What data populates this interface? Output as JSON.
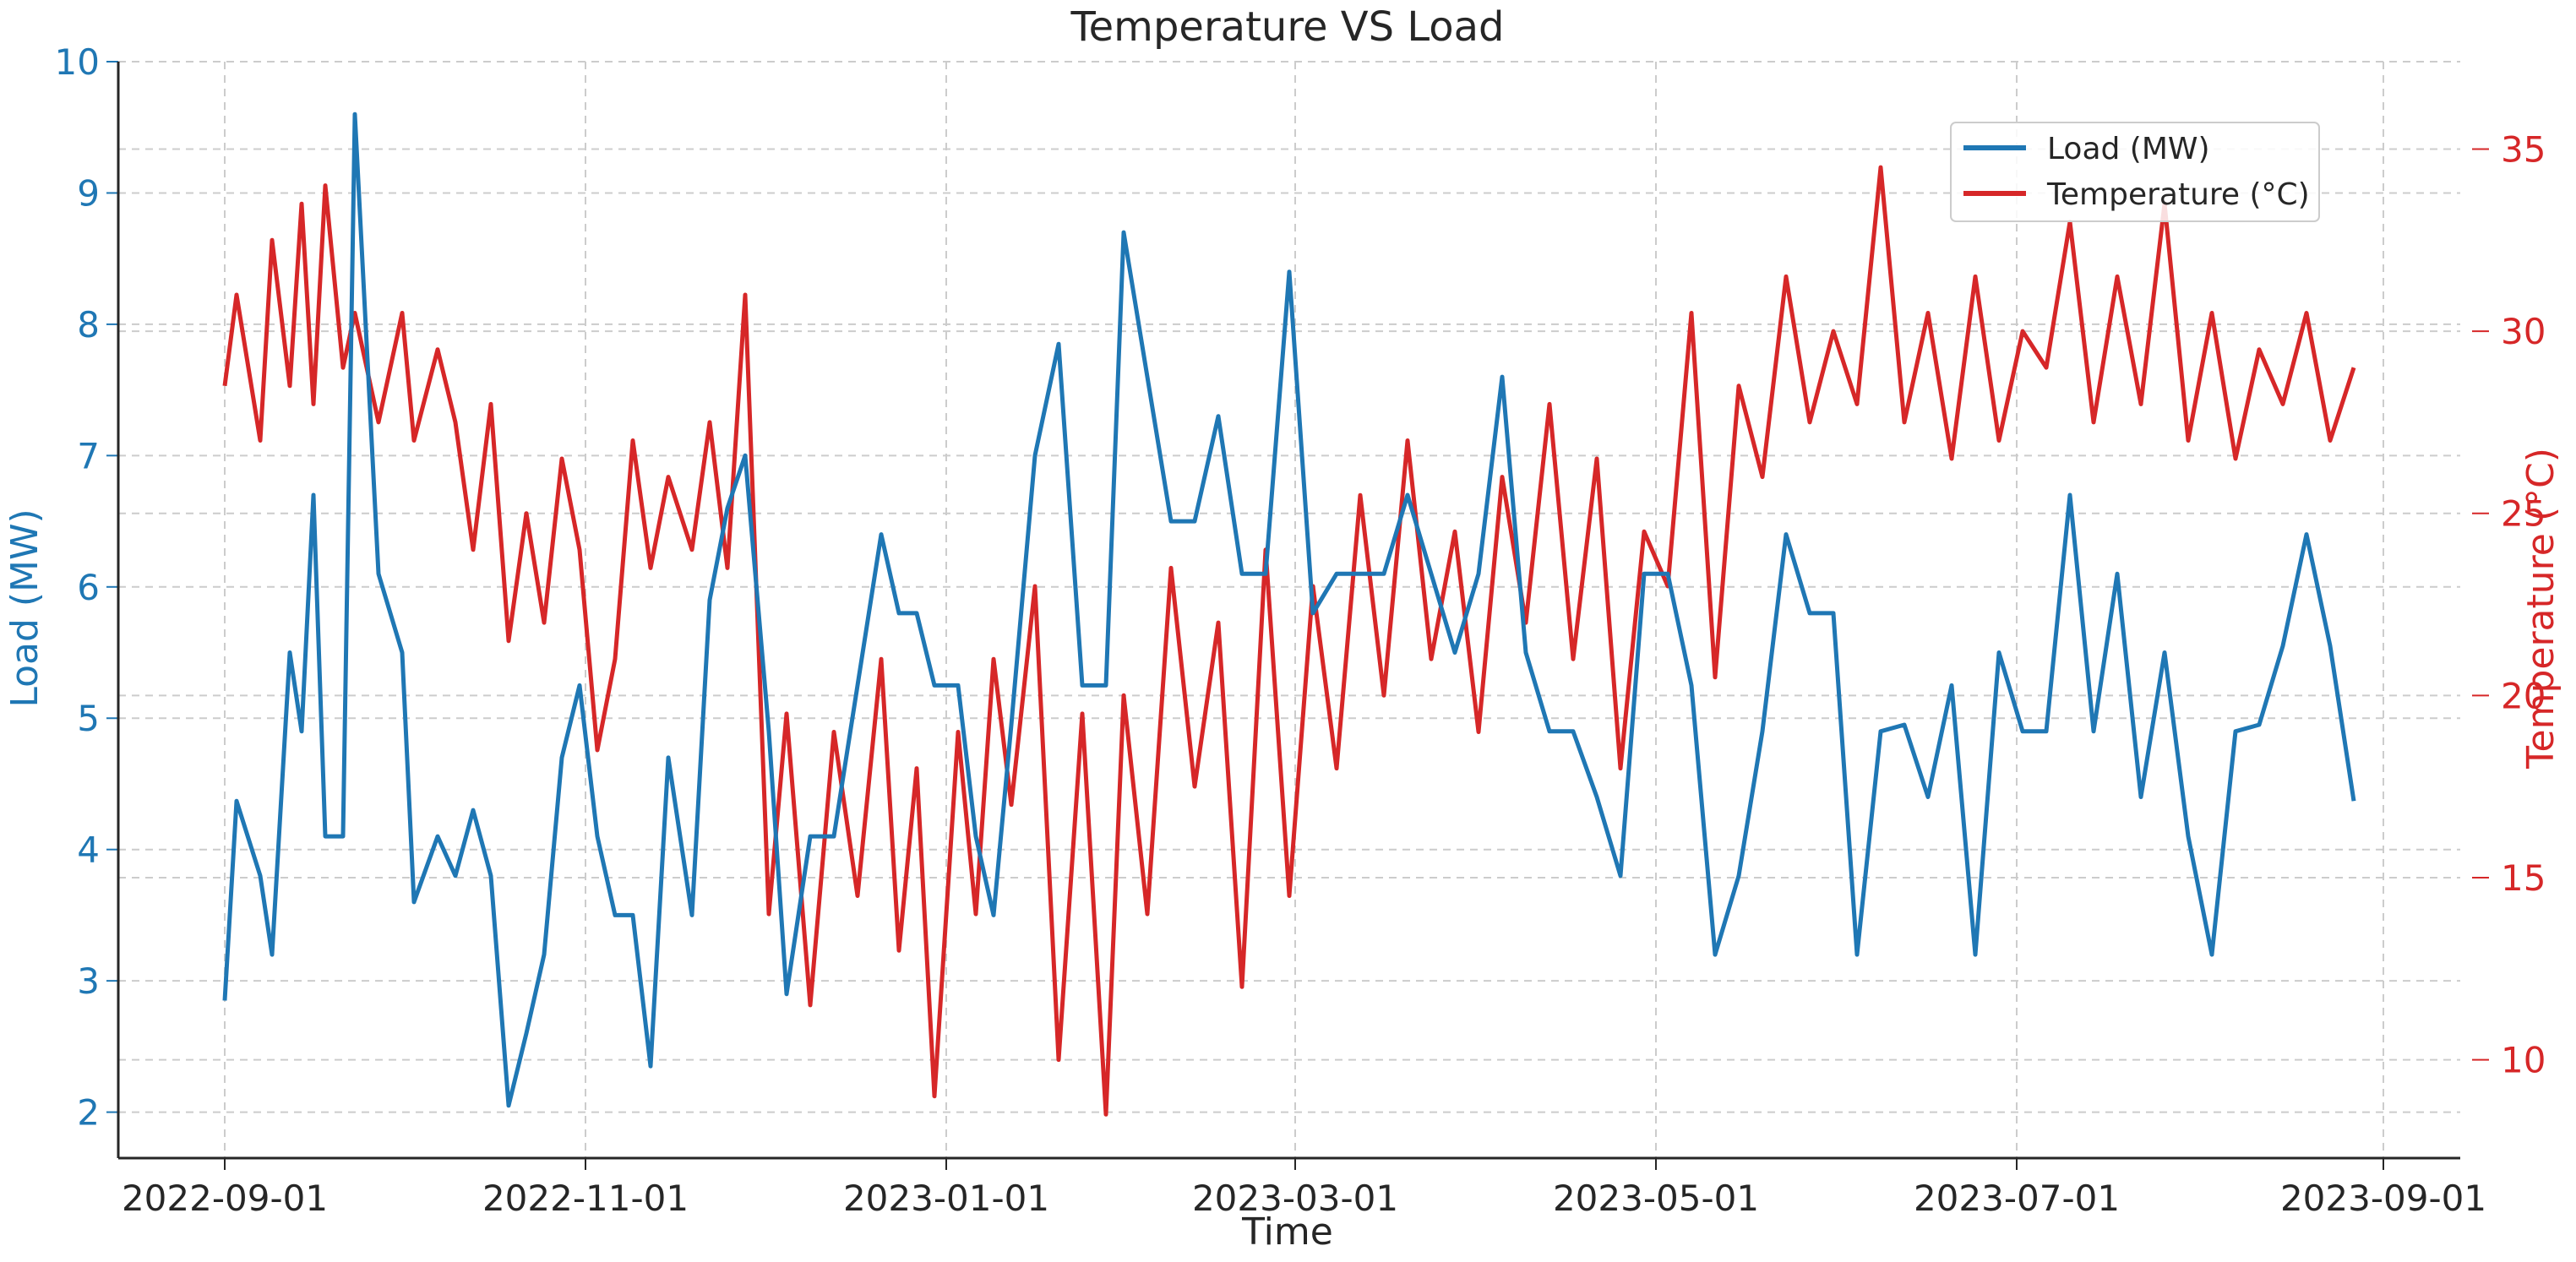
{
  "chart_data": {
    "type": "line",
    "title": "Temperature VS Load",
    "xlabel": "Time",
    "x_ticks": [
      "2022-09-01",
      "2022-11-01",
      "2023-01-01",
      "2023-03-01",
      "2023-05-01",
      "2023-07-01",
      "2023-09-01"
    ],
    "x_range": [
      "2022-08-14",
      "2023-09-14"
    ],
    "grid": true,
    "legend_position": "top-right",
    "y_left": {
      "label": "Load (MW)",
      "color": "#1f77b4",
      "ylim": [
        1.65,
        10.0
      ],
      "ticks": [
        "2",
        "3",
        "4",
        "5",
        "6",
        "7",
        "8",
        "9",
        "10"
      ]
    },
    "y_right": {
      "label": "Temperature (°C)",
      "color": "#d62728",
      "ylim": [
        7.3,
        37.4
      ],
      "ticks": [
        "10",
        "15",
        "20",
        "25",
        "30",
        "35"
      ]
    },
    "series": [
      {
        "name": "Load (MW)",
        "axis": "left",
        "color": "#1f77b4",
        "dates": [
          "2022-09-01",
          "2022-09-03",
          "2022-09-07",
          "2022-09-09",
          "2022-09-12",
          "2022-09-14",
          "2022-09-16",
          "2022-09-18",
          "2022-09-21",
          "2022-09-23",
          "2022-09-27",
          "2022-10-01",
          "2022-10-03",
          "2022-10-07",
          "2022-10-10",
          "2022-10-13",
          "2022-10-16",
          "2022-10-19",
          "2022-10-22",
          "2022-10-25",
          "2022-10-28",
          "2022-10-31",
          "2022-11-03",
          "2022-11-06",
          "2022-11-09",
          "2022-11-12",
          "2022-11-15",
          "2022-11-19",
          "2022-11-22",
          "2022-11-25",
          "2022-11-28",
          "2022-12-02",
          "2022-12-05",
          "2022-12-09",
          "2022-12-13",
          "2022-12-17",
          "2022-12-21",
          "2022-12-24",
          "2022-12-27",
          "2022-12-30",
          "2023-01-03",
          "2023-01-06",
          "2023-01-09",
          "2023-01-12",
          "2023-01-16",
          "2023-01-20",
          "2023-01-24",
          "2023-01-28",
          "2023-01-31",
          "2023-02-04",
          "2023-02-08",
          "2023-02-12",
          "2023-02-16",
          "2023-02-20",
          "2023-02-24",
          "2023-02-28",
          "2023-03-04",
          "2023-03-08",
          "2023-03-12",
          "2023-03-16",
          "2023-03-20",
          "2023-03-24",
          "2023-03-28",
          "2023-04-01",
          "2023-04-05",
          "2023-04-09",
          "2023-04-13",
          "2023-04-17",
          "2023-04-21",
          "2023-04-25",
          "2023-04-29",
          "2023-05-03",
          "2023-05-07",
          "2023-05-11",
          "2023-05-15",
          "2023-05-19",
          "2023-05-23",
          "2023-05-27",
          "2023-05-31",
          "2023-06-04",
          "2023-06-08",
          "2023-06-12",
          "2023-06-16",
          "2023-06-20",
          "2023-06-24",
          "2023-06-28",
          "2023-07-02",
          "2023-07-06",
          "2023-07-10",
          "2023-07-14",
          "2023-07-18",
          "2023-07-22",
          "2023-07-26",
          "2023-07-30",
          "2023-08-03",
          "2023-08-07",
          "2023-08-11",
          "2023-08-15",
          "2023-08-19",
          "2023-08-23",
          "2023-08-27"
        ],
        "values": [
          2.85,
          4.37,
          3.8,
          3.2,
          5.5,
          4.9,
          6.7,
          4.1,
          4.1,
          9.6,
          6.1,
          5.5,
          3.6,
          4.1,
          3.8,
          4.3,
          3.8,
          2.05,
          2.6,
          3.2,
          4.7,
          5.25,
          4.1,
          3.5,
          3.5,
          2.35,
          4.7,
          3.5,
          5.9,
          6.6,
          7.0,
          4.9,
          2.9,
          4.1,
          4.1,
          5.25,
          6.4,
          5.8,
          5.8,
          5.25,
          5.25,
          4.1,
          3.5,
          4.95,
          7.0,
          7.85,
          5.25,
          5.25,
          8.7,
          7.6,
          6.5,
          6.5,
          7.3,
          6.1,
          6.1,
          8.4,
          5.8,
          6.1,
          6.1,
          6.1,
          6.7,
          6.1,
          5.5,
          6.1,
          7.6,
          5.5,
          4.9,
          4.9,
          4.4,
          3.8,
          6.1,
          6.1,
          5.25,
          3.2,
          3.8,
          4.9,
          6.4,
          5.8,
          5.8,
          3.2,
          4.9,
          4.95,
          4.4,
          5.25,
          3.2,
          5.5,
          4.9,
          4.9,
          6.7,
          4.9,
          6.1,
          4.4,
          5.5,
          4.1,
          3.2,
          4.9,
          4.95,
          5.55,
          6.4,
          5.55,
          4.37
        ]
      },
      {
        "name": "Temperature (°C)",
        "axis": "right",
        "color": "#d62728",
        "dates": [
          "2022-09-01",
          "2022-09-03",
          "2022-09-07",
          "2022-09-09",
          "2022-09-12",
          "2022-09-14",
          "2022-09-16",
          "2022-09-18",
          "2022-09-21",
          "2022-09-23",
          "2022-09-27",
          "2022-10-01",
          "2022-10-03",
          "2022-10-07",
          "2022-10-10",
          "2022-10-13",
          "2022-10-16",
          "2022-10-19",
          "2022-10-22",
          "2022-10-25",
          "2022-10-28",
          "2022-10-31",
          "2022-11-03",
          "2022-11-06",
          "2022-11-09",
          "2022-11-12",
          "2022-11-15",
          "2022-11-19",
          "2022-11-22",
          "2022-11-25",
          "2022-11-28",
          "2022-12-02",
          "2022-12-05",
          "2022-12-09",
          "2022-12-13",
          "2022-12-17",
          "2022-12-21",
          "2022-12-24",
          "2022-12-27",
          "2022-12-30",
          "2023-01-03",
          "2023-01-06",
          "2023-01-09",
          "2023-01-12",
          "2023-01-16",
          "2023-01-20",
          "2023-01-24",
          "2023-01-28",
          "2023-01-31",
          "2023-02-04",
          "2023-02-08",
          "2023-02-12",
          "2023-02-16",
          "2023-02-20",
          "2023-02-24",
          "2023-02-28",
          "2023-03-04",
          "2023-03-08",
          "2023-03-12",
          "2023-03-16",
          "2023-03-20",
          "2023-03-24",
          "2023-03-28",
          "2023-04-01",
          "2023-04-05",
          "2023-04-09",
          "2023-04-13",
          "2023-04-17",
          "2023-04-21",
          "2023-04-25",
          "2023-04-29",
          "2023-05-03",
          "2023-05-07",
          "2023-05-11",
          "2023-05-15",
          "2023-05-19",
          "2023-05-23",
          "2023-05-27",
          "2023-05-31",
          "2023-06-04",
          "2023-06-08",
          "2023-06-12",
          "2023-06-16",
          "2023-06-20",
          "2023-06-24",
          "2023-06-28",
          "2023-07-02",
          "2023-07-06",
          "2023-07-10",
          "2023-07-14",
          "2023-07-18",
          "2023-07-22",
          "2023-07-26",
          "2023-07-30",
          "2023-08-03",
          "2023-08-07",
          "2023-08-11",
          "2023-08-15",
          "2023-08-19",
          "2023-08-23",
          "2023-08-27"
        ],
        "values": [
          28.5,
          31.0,
          27.0,
          32.5,
          28.5,
          33.5,
          28.0,
          34.0,
          29.0,
          30.5,
          27.5,
          30.5,
          27.0,
          29.5,
          27.5,
          24.0,
          28.0,
          21.5,
          25.0,
          22.0,
          26.5,
          24.0,
          18.5,
          21.0,
          27.0,
          23.5,
          26.0,
          24.0,
          27.5,
          23.5,
          31.0,
          14.0,
          19.5,
          11.5,
          19.0,
          14.5,
          21.0,
          13.0,
          18.0,
          9.0,
          19.0,
          14.0,
          21.0,
          17.0,
          23.0,
          10.0,
          19.5,
          8.5,
          20.0,
          14.0,
          23.5,
          17.5,
          22.0,
          12.0,
          24.0,
          14.5,
          23.0,
          18.0,
          25.5,
          20.0,
          27.0,
          21.0,
          24.5,
          19.0,
          26.0,
          22.0,
          28.0,
          21.0,
          26.5,
          18.0,
          24.5,
          23.0,
          30.5,
          20.5,
          28.5,
          26.0,
          31.5,
          27.5,
          30.0,
          28.0,
          34.5,
          27.5,
          30.5,
          26.5,
          31.5,
          27.0,
          30.0,
          29.0,
          33.0,
          27.5,
          31.5,
          28.0,
          33.5,
          27.0,
          30.5,
          26.5,
          29.5,
          28.0,
          30.5,
          27.0,
          29.0
        ]
      }
    ]
  }
}
